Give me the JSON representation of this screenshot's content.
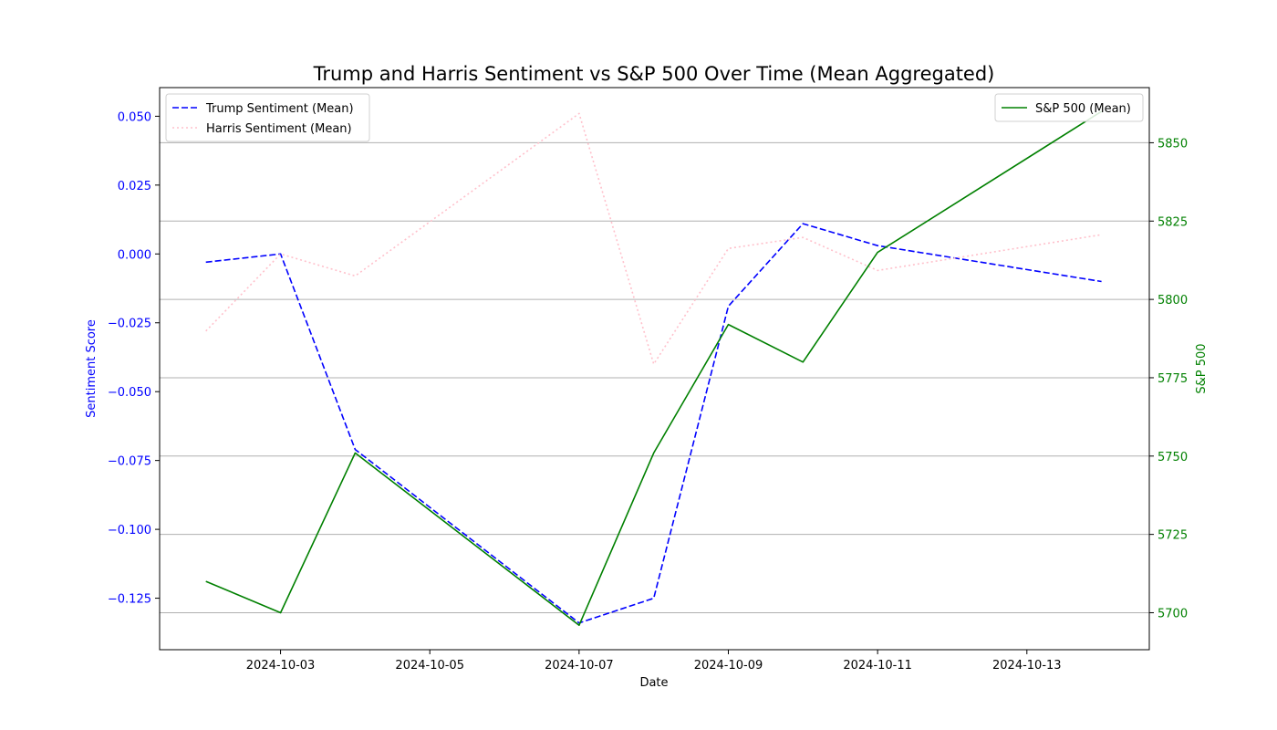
{
  "chart_data": {
    "type": "line",
    "title": "Trump and Harris Sentiment vs S&P 500 Over Time (Mean Aggregated)",
    "xlabel": "Date",
    "ylabel_left": "Sentiment Score",
    "ylabel_right": "S&P 500",
    "x": [
      "2024-10-02",
      "2024-10-03",
      "2024-10-04",
      "2024-10-07",
      "2024-10-08",
      "2024-10-09",
      "2024-10-10",
      "2024-10-11",
      "2024-10-14"
    ],
    "x_ticks": [
      "2024-10-03",
      "2024-10-05",
      "2024-10-07",
      "2024-10-09",
      "2024-10-11",
      "2024-10-13"
    ],
    "x_range": [
      "2024-10-01T09:07",
      "2024-10-14T15:22"
    ],
    "left_axis": {
      "ylim": [
        -0.1437,
        0.0604
      ],
      "ticks": [
        -0.125,
        -0.1,
        -0.075,
        -0.05,
        -0.025,
        0.0,
        0.025,
        0.05
      ],
      "tick_labels": [
        "−0.125",
        "−0.100",
        "−0.075",
        "−0.050",
        "−0.025",
        "0.000",
        "0.025",
        "0.050"
      ],
      "color": "#0000ff"
    },
    "right_axis": {
      "ylim": [
        5688.2,
        5867.6
      ],
      "ticks": [
        5700,
        5725,
        5750,
        5775,
        5800,
        5825,
        5850
      ],
      "tick_labels": [
        "5700",
        "5725",
        "5750",
        "5775",
        "5800",
        "5825",
        "5850"
      ],
      "color": "#008000",
      "grid": true
    },
    "series": [
      {
        "name": "Trump Sentiment (Mean)",
        "axis": "left",
        "color": "#0000ff",
        "style": "dashed",
        "values": [
          -0.003,
          0.0,
          -0.071,
          -0.134,
          -0.125,
          -0.019,
          0.011,
          0.003,
          -0.01
        ]
      },
      {
        "name": "Harris Sentiment (Mean)",
        "axis": "left",
        "color": "#ffc0cb",
        "style": "dotted",
        "values": [
          -0.028,
          0.0,
          -0.008,
          0.051,
          -0.04,
          0.002,
          0.006,
          -0.006,
          0.007
        ]
      },
      {
        "name": "S&P 500 (Mean)",
        "axis": "right",
        "color": "#008000",
        "style": "solid",
        "values": [
          5710,
          5700,
          5751,
          5696,
          5751,
          5792,
          5780,
          5815,
          5860
        ]
      }
    ],
    "legends": [
      {
        "placement": "upper-left",
        "entries": [
          "Trump Sentiment (Mean)",
          "Harris Sentiment (Mean)"
        ]
      },
      {
        "placement": "upper-right",
        "entries": [
          "S&P 500 (Mean)"
        ]
      }
    ]
  }
}
